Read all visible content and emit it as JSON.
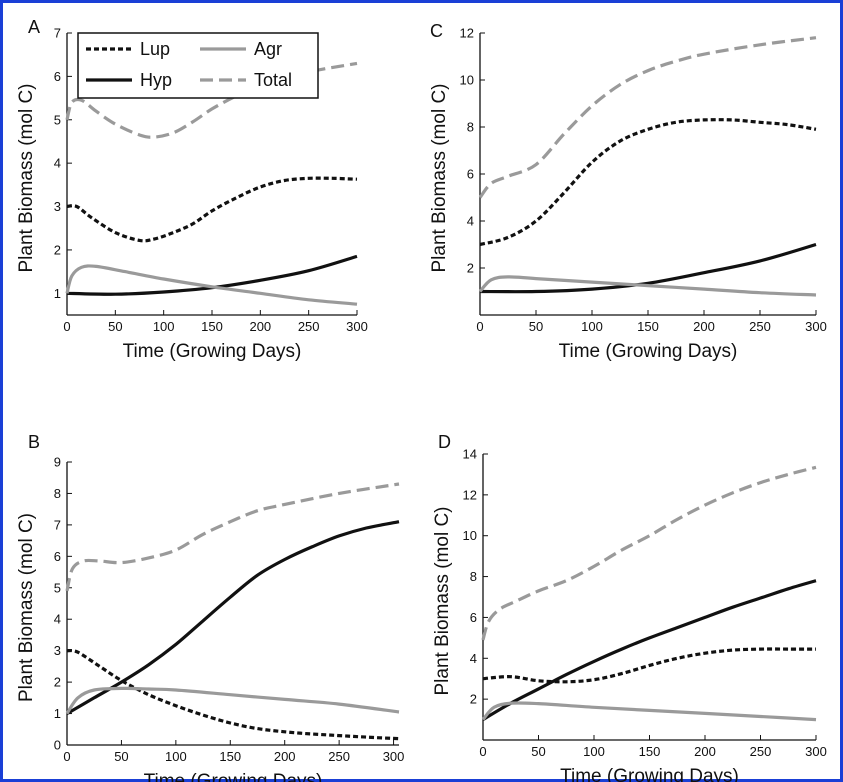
{
  "colors": {
    "border": "#1a3fd6",
    "black": "#111111",
    "gray": "#9a9a9a"
  },
  "legend": {
    "entries": [
      {
        "name": "Lup",
        "style": "dotted",
        "color": "#111111"
      },
      {
        "name": "Agr",
        "style": "solid",
        "color": "#9a9a9a"
      },
      {
        "name": "Hyp",
        "style": "solid",
        "color": "#111111"
      },
      {
        "name": "Total",
        "style": "dashed",
        "color": "#9a9a9a"
      }
    ]
  },
  "chart_data": [
    {
      "id": "A",
      "type": "line",
      "panel_label": "A",
      "xlabel": "Time (Growing Days)",
      "ylabel": "Plant Biomass (mol C)",
      "xlim": [
        0,
        300
      ],
      "ylim": [
        0.5,
        7
      ],
      "xticks": [
        0,
        50,
        100,
        150,
        200,
        250,
        300
      ],
      "yticks": [
        1,
        2,
        3,
        4,
        5,
        6,
        7
      ],
      "series": [
        {
          "name": "Lup",
          "x": [
            0,
            10,
            25,
            50,
            75,
            90,
            110,
            130,
            150,
            175,
            200,
            225,
            250,
            275,
            300
          ],
          "y": [
            3.0,
            3.0,
            2.75,
            2.4,
            2.22,
            2.25,
            2.4,
            2.6,
            2.9,
            3.2,
            3.45,
            3.6,
            3.65,
            3.65,
            3.63
          ]
        },
        {
          "name": "Hyp",
          "x": [
            0,
            50,
            100,
            150,
            200,
            250,
            300
          ],
          "y": [
            1.0,
            0.98,
            1.03,
            1.13,
            1.3,
            1.52,
            1.85
          ]
        },
        {
          "name": "Agr",
          "x": [
            0,
            5,
            15,
            30,
            60,
            100,
            150,
            200,
            250,
            300
          ],
          "y": [
            1.0,
            1.4,
            1.6,
            1.62,
            1.5,
            1.33,
            1.15,
            1.0,
            0.85,
            0.75
          ]
        },
        {
          "name": "Total",
          "x": [
            0,
            5,
            15,
            30,
            50,
            75,
            90,
            110,
            130,
            150,
            175,
            200,
            250,
            300
          ],
          "y": [
            5.0,
            5.4,
            5.45,
            5.2,
            4.9,
            4.65,
            4.6,
            4.7,
            4.95,
            5.25,
            5.55,
            5.8,
            6.1,
            6.3
          ]
        }
      ]
    },
    {
      "id": "B",
      "type": "line",
      "panel_label": "B",
      "xlabel": "Time (Growing Days)",
      "ylabel": "Plant Biomass (mol C)",
      "xlim": [
        0,
        305
      ],
      "ylim": [
        0,
        9
      ],
      "xticks": [
        0,
        50,
        100,
        150,
        200,
        250,
        300
      ],
      "yticks": [
        0,
        1,
        2,
        3,
        4,
        5,
        6,
        7,
        8,
        9
      ],
      "series": [
        {
          "name": "Lup",
          "x": [
            0,
            10,
            30,
            50,
            75,
            100,
            125,
            150,
            175,
            200,
            225,
            250,
            275,
            305
          ],
          "y": [
            3.0,
            2.95,
            2.5,
            2.05,
            1.6,
            1.25,
            0.95,
            0.7,
            0.52,
            0.42,
            0.35,
            0.3,
            0.25,
            0.2
          ]
        },
        {
          "name": "Hyp",
          "x": [
            0,
            25,
            50,
            75,
            100,
            125,
            150,
            175,
            200,
            225,
            250,
            275,
            305
          ],
          "y": [
            1.0,
            1.5,
            2.0,
            2.55,
            3.2,
            3.95,
            4.7,
            5.4,
            5.9,
            6.3,
            6.65,
            6.9,
            7.1
          ]
        },
        {
          "name": "Agr",
          "x": [
            0,
            10,
            25,
            50,
            75,
            100,
            150,
            200,
            250,
            305
          ],
          "y": [
            1.0,
            1.5,
            1.75,
            1.8,
            1.78,
            1.75,
            1.6,
            1.45,
            1.3,
            1.05
          ]
        },
        {
          "name": "Total",
          "x": [
            0,
            5,
            15,
            30,
            50,
            75,
            100,
            125,
            150,
            175,
            200,
            250,
            305
          ],
          "y": [
            4.9,
            5.6,
            5.85,
            5.85,
            5.8,
            5.95,
            6.2,
            6.7,
            7.1,
            7.45,
            7.65,
            8.0,
            8.3
          ]
        }
      ]
    },
    {
      "id": "C",
      "type": "line",
      "panel_label": "C",
      "xlabel": "Time (Growing Days)",
      "ylabel": "Plant Biomass (mol C)",
      "xlim": [
        0,
        300
      ],
      "ylim": [
        0,
        12
      ],
      "xticks": [
        0,
        50,
        100,
        150,
        200,
        250,
        300
      ],
      "yticks": [
        2,
        4,
        6,
        8,
        10,
        12
      ],
      "series": [
        {
          "name": "Lup",
          "x": [
            0,
            25,
            50,
            75,
            100,
            125,
            150,
            175,
            200,
            225,
            250,
            275,
            300
          ],
          "y": [
            3.0,
            3.3,
            4.0,
            5.2,
            6.5,
            7.4,
            7.9,
            8.2,
            8.3,
            8.3,
            8.2,
            8.1,
            7.9
          ]
        },
        {
          "name": "Hyp",
          "x": [
            0,
            50,
            100,
            150,
            200,
            250,
            300
          ],
          "y": [
            1.0,
            1.0,
            1.1,
            1.35,
            1.8,
            2.3,
            3.0
          ]
        },
        {
          "name": "Agr",
          "x": [
            0,
            10,
            25,
            50,
            100,
            150,
            200,
            250,
            300
          ],
          "y": [
            1.0,
            1.5,
            1.62,
            1.55,
            1.4,
            1.25,
            1.1,
            0.95,
            0.85
          ]
        },
        {
          "name": "Total",
          "x": [
            0,
            10,
            25,
            50,
            75,
            100,
            125,
            150,
            175,
            200,
            250,
            300
          ],
          "y": [
            5.0,
            5.6,
            5.9,
            6.4,
            7.7,
            8.9,
            9.8,
            10.4,
            10.8,
            11.1,
            11.5,
            11.8
          ]
        }
      ]
    },
    {
      "id": "D",
      "type": "line",
      "panel_label": "D",
      "xlabel": "Time (Growing Days)",
      "ylabel": "Plant Biomass (mol C)",
      "xlim": [
        0,
        300
      ],
      "ylim": [
        0,
        14
      ],
      "xticks": [
        0,
        50,
        100,
        150,
        200,
        250,
        300
      ],
      "yticks": [
        2,
        4,
        6,
        8,
        10,
        12,
        14
      ],
      "series": [
        {
          "name": "Lup",
          "x": [
            0,
            25,
            50,
            75,
            100,
            125,
            150,
            175,
            200,
            225,
            250,
            275,
            300
          ],
          "y": [
            3.0,
            3.1,
            2.9,
            2.85,
            2.95,
            3.25,
            3.65,
            4.0,
            4.25,
            4.4,
            4.45,
            4.45,
            4.45
          ]
        },
        {
          "name": "Hyp",
          "x": [
            0,
            25,
            50,
            75,
            100,
            125,
            150,
            175,
            200,
            225,
            250,
            275,
            300
          ],
          "y": [
            1.0,
            1.8,
            2.5,
            3.2,
            3.85,
            4.45,
            5.0,
            5.5,
            6.0,
            6.5,
            6.95,
            7.4,
            7.8
          ]
        },
        {
          "name": "Agr",
          "x": [
            0,
            10,
            25,
            50,
            100,
            150,
            200,
            250,
            300
          ],
          "y": [
            1.0,
            1.6,
            1.8,
            1.78,
            1.6,
            1.45,
            1.3,
            1.15,
            1.0
          ]
        },
        {
          "name": "Total",
          "x": [
            0,
            5,
            15,
            30,
            50,
            75,
            100,
            125,
            150,
            175,
            200,
            225,
            250,
            275,
            300
          ],
          "y": [
            4.9,
            5.8,
            6.4,
            6.8,
            7.3,
            7.8,
            8.5,
            9.3,
            10.0,
            10.8,
            11.5,
            12.1,
            12.6,
            13.0,
            13.35
          ]
        }
      ]
    }
  ]
}
